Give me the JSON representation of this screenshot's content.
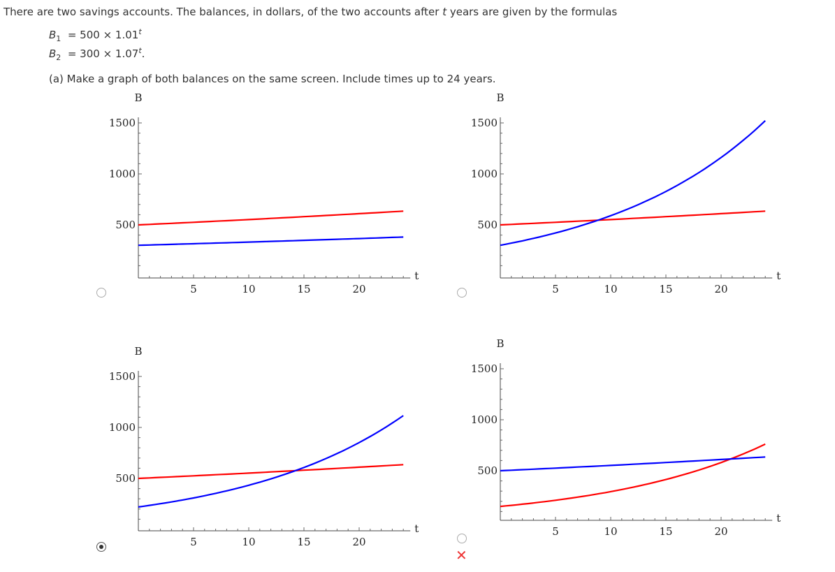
{
  "question": {
    "intro": "There are two savings accounts. The balances, in dollars, of the two accounts after t years are given by the formulas",
    "intro_before_t": "There are two savings accounts. The balances, in dollars, of the two accounts after ",
    "intro_t": "t",
    "intro_after_t": " years are given by the formulas",
    "formula1": {
      "var": "B",
      "sub": "1",
      "rhs": "= 500 × 1.01",
      "exp": "t",
      "end": ""
    },
    "formula2": {
      "var": "B",
      "sub": "2",
      "rhs": "= 300 × 1.07",
      "exp": "t",
      "end": "."
    },
    "part_a": "(a) Make a graph of both balances on the same screen. Include times up to 24 years."
  },
  "options": [
    {
      "selected": false,
      "marked_wrong": false
    },
    {
      "selected": false,
      "marked_wrong": false
    },
    {
      "selected": true,
      "marked_wrong": false
    },
    {
      "selected": false,
      "marked_wrong": true
    }
  ],
  "wrong_mark": "✕",
  "colors": {
    "red": "#ff0000",
    "blue": "#0000ff"
  },
  "chart_data": [
    {
      "type": "line",
      "xlabel": "t",
      "ylabel": "B",
      "xlim": [
        0,
        24
      ],
      "ylim": [
        0,
        1500
      ],
      "xticks": [
        "5",
        "10",
        "15",
        "20"
      ],
      "yticks": [
        "500",
        "1000",
        "1500"
      ],
      "series": [
        {
          "name": "red",
          "initial": 500,
          "growth": 1.01
        },
        {
          "name": "blue",
          "initial": 300,
          "growth": 1.01
        }
      ]
    },
    {
      "type": "line",
      "xlabel": "t",
      "ylabel": "B",
      "xlim": [
        0,
        24
      ],
      "ylim": [
        0,
        1500
      ],
      "xticks": [
        "5",
        "10",
        "15",
        "20"
      ],
      "yticks": [
        "500",
        "1000",
        "1500"
      ],
      "series": [
        {
          "name": "red",
          "initial": 500,
          "growth": 1.01
        },
        {
          "name": "blue",
          "initial": 300,
          "growth": 1.07
        }
      ]
    },
    {
      "type": "line",
      "xlabel": "t",
      "ylabel": "B",
      "xlim": [
        0,
        24
      ],
      "ylim": [
        0,
        1500
      ],
      "xticks": [
        "5",
        "10",
        "15",
        "20"
      ],
      "yticks": [
        "500",
        "1000",
        "1500"
      ],
      "series": [
        {
          "name": "red",
          "initial": 500,
          "growth": 1.01
        },
        {
          "name": "blue",
          "initial": 220,
          "growth": 1.07
        }
      ]
    },
    {
      "type": "line",
      "xlabel": "t",
      "ylabel": "B",
      "xlim": [
        0,
        24
      ],
      "ylim": [
        0,
        1500
      ],
      "xticks": [
        "5",
        "10",
        "15",
        "20"
      ],
      "yticks": [
        "500",
        "1000",
        "1500"
      ],
      "series": [
        {
          "name": "red",
          "initial": 150,
          "growth": 1.07
        },
        {
          "name": "blue",
          "initial": 500,
          "growth": 1.01
        }
      ]
    }
  ]
}
